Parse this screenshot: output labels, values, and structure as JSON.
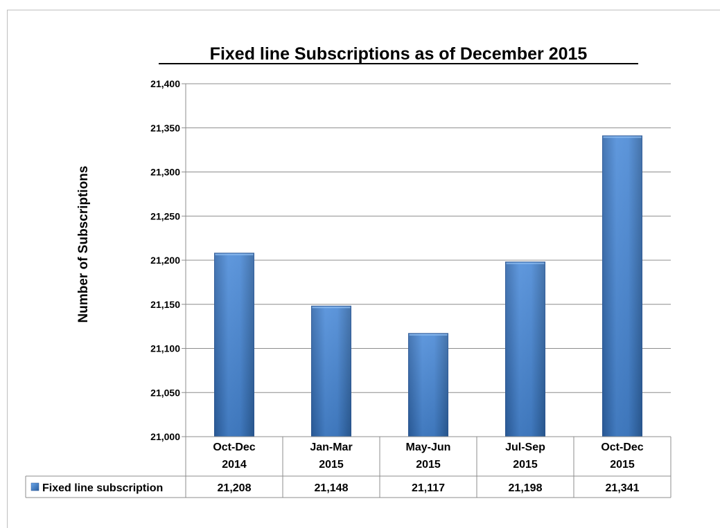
{
  "chart_data": {
    "type": "bar",
    "title": "Fixed line Subscriptions as of December 2015",
    "xlabel": "",
    "ylabel": "Number of Subscriptions",
    "categories": [
      [
        "Oct-Dec",
        "2014"
      ],
      [
        "Jan-Mar",
        "2015"
      ],
      [
        "May-Jun",
        "2015"
      ],
      [
        "Jul-Sep",
        "2015"
      ],
      [
        "Oct-Dec",
        "2015"
      ]
    ],
    "series": [
      {
        "name": "Fixed line subscription",
        "values": [
          21208,
          21148,
          21117,
          21198,
          21341
        ],
        "labels": [
          "21,208",
          "21,148",
          "21,117",
          "21,198",
          "21,341"
        ]
      }
    ],
    "ylim": [
      21000,
      21400
    ],
    "yticks": [
      21000,
      21050,
      21100,
      21150,
      21200,
      21250,
      21300,
      21350,
      21400
    ],
    "ytick_labels": [
      "21,000",
      "21,050",
      "21,100",
      "21,150",
      "21,200",
      "21,250",
      "21,300",
      "21,350",
      "21,400"
    ],
    "grid": true,
    "legend": "data-table-left",
    "colors": {
      "bar_light": "#4f8fdb",
      "bar_mid": "#3a78c9",
      "bar_dark": "#2a5e9f",
      "grid": "#8c8c8c",
      "table_border": "#8c8c8c"
    }
  }
}
